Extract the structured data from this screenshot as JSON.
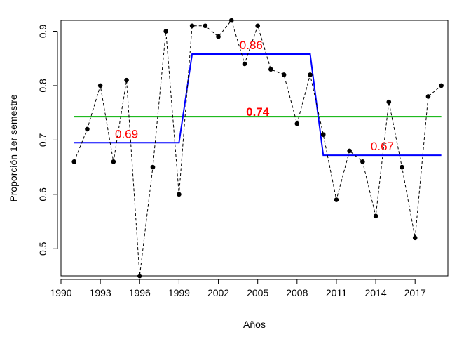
{
  "chart_data": {
    "type": "line",
    "title": "",
    "xlabel": "Años",
    "ylabel": "Proporción 1er semestre",
    "xlim": [
      1990,
      2019.5
    ],
    "ylim": [
      0.45,
      0.92
    ],
    "xticks": [
      1990,
      1993,
      1996,
      1999,
      2002,
      2005,
      2008,
      2011,
      2014,
      2017
    ],
    "yticks": [
      0.5,
      0.6,
      0.7,
      0.8,
      0.9
    ],
    "grid": false,
    "legend": "none",
    "colors": {
      "series": "#000000",
      "overall_mean": "#00b000",
      "segment_means": "#0000ff",
      "labels": "#ff0000"
    },
    "series": [
      {
        "style": "dashed line with filled points",
        "x": [
          1991,
          1992,
          1993,
          1994,
          1995,
          1996,
          1997,
          1998,
          1999,
          2000,
          2001,
          2002,
          2003,
          2004,
          2005,
          2006,
          2007,
          2008,
          2009,
          2010,
          2011,
          2012,
          2013,
          2014,
          2015,
          2016,
          2017,
          2018,
          2019
        ],
        "y": [
          0.66,
          0.72,
          0.8,
          0.66,
          0.81,
          0.45,
          0.65,
          0.9,
          0.6,
          0.91,
          0.91,
          0.89,
          0.92,
          0.84,
          0.91,
          0.83,
          0.82,
          0.73,
          0.82,
          0.71,
          0.59,
          0.68,
          0.66,
          0.56,
          0.77,
          0.65,
          0.52,
          0.78,
          0.8
        ]
      }
    ],
    "overall_mean": {
      "value": 0.743,
      "label": "0.74",
      "x_range": [
        1991,
        2019
      ]
    },
    "segment_means": [
      {
        "value": 0.695,
        "label": "0.69",
        "x_range": [
          1991,
          1999
        ]
      },
      {
        "value": 0.858,
        "label": "0.86",
        "x_range": [
          2000,
          2009
        ]
      },
      {
        "value": 0.672,
        "label": "0.67",
        "x_range": [
          2010,
          2019
        ]
      }
    ]
  }
}
